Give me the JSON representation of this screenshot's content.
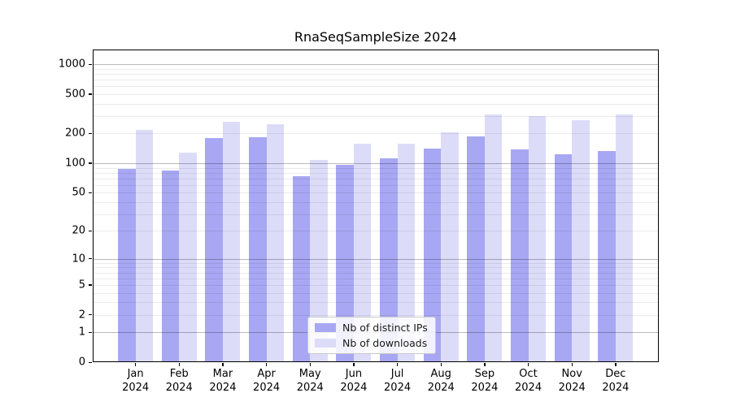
{
  "chart_data": {
    "type": "bar",
    "title": "RnaSeqSampleSize 2024",
    "categories": [
      "Jan 2024",
      "Feb 2024",
      "Mar 2024",
      "Apr 2024",
      "May 2024",
      "Jun 2024",
      "Jul 2024",
      "Aug 2024",
      "Sep 2024",
      "Oct 2024",
      "Nov 2024",
      "Dec 2024"
    ],
    "series": [
      {
        "name": "Nb of distinct IPs",
        "color": "#a7a7f3",
        "values": [
          88,
          84,
          179,
          182,
          74,
          97,
          112,
          141,
          186,
          137,
          123,
          134
        ]
      },
      {
        "name": "Nb of downloads",
        "color": "#dcdcf9",
        "values": [
          218,
          127,
          262,
          249,
          108,
          158,
          158,
          205,
          311,
          300,
          272,
          311
        ]
      }
    ],
    "yscale": "log1p",
    "ylim": [
      0,
      1410
    ],
    "yticks": [
      0,
      1,
      2,
      5,
      10,
      20,
      50,
      100,
      200,
      500,
      1000
    ],
    "major_gridline_values": [
      1,
      10,
      100,
      1000
    ],
    "minor_gridline_decades": [
      1,
      10,
      100
    ],
    "grid": "on",
    "legend_position": "lower center",
    "xlabel": "",
    "ylabel": ""
  }
}
